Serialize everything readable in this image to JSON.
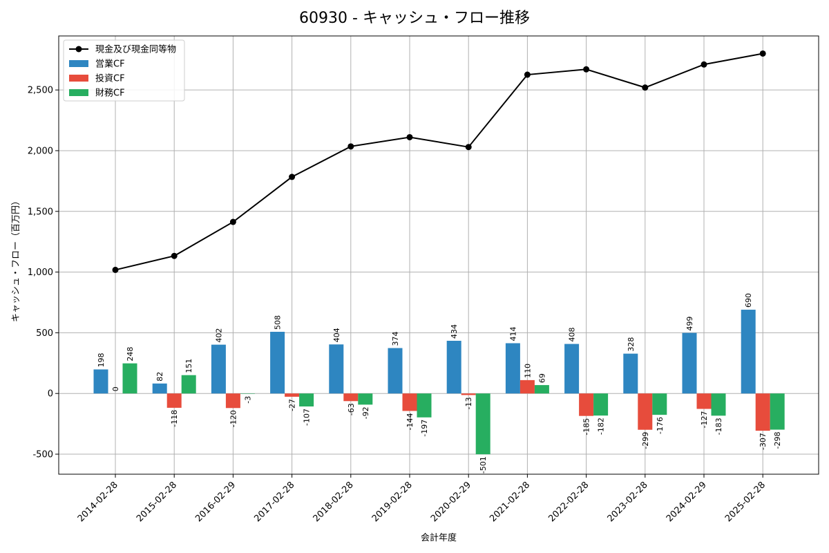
{
  "chart_data": {
    "type": "bar",
    "title": "60930 - キャッシュ・フロー推移",
    "xlabel": "会計年度",
    "ylabel": "キャッシュ・フロー（百万円）",
    "categories": [
      "2014-02-28",
      "2015-02-28",
      "2016-02-29",
      "2017-02-28",
      "2018-02-28",
      "2019-02-28",
      "2020-02-29",
      "2021-02-28",
      "2022-02-28",
      "2023-02-28",
      "2024-02-29",
      "2025-02-28"
    ],
    "ylim": [
      -665,
      2945
    ],
    "yticks": [
      -500,
      0,
      500,
      1000,
      1500,
      2000,
      2500
    ],
    "ytick_labels": [
      "-500",
      "0",
      "500",
      "1,000",
      "1,500",
      "2,000",
      "2,500"
    ],
    "grid": true,
    "legend_position": "top-left",
    "series": [
      {
        "name": "営業CF",
        "kind": "bar",
        "color": "#2e86c1",
        "values": [
          198,
          82,
          402,
          508,
          404,
          374,
          434,
          414,
          408,
          328,
          499,
          690
        ]
      },
      {
        "name": "投資CF",
        "kind": "bar",
        "color": "#e74c3c",
        "values": [
          0,
          -118,
          -120,
          -27,
          -63,
          -144,
          -13,
          110,
          -185,
          -299,
          -127,
          -307
        ]
      },
      {
        "name": "財務CF",
        "kind": "bar",
        "color": "#27ae60",
        "values": [
          248,
          151,
          -3,
          -107,
          -92,
          -197,
          -501,
          69,
          -182,
          -176,
          -183,
          -298
        ]
      },
      {
        "name": "現金及び現金同等物",
        "kind": "line",
        "color": "#000000",
        "values": [
          1018,
          1133,
          1413,
          1784,
          2035,
          2111,
          2030,
          2626,
          2670,
          2520,
          2710,
          2800
        ]
      }
    ]
  }
}
